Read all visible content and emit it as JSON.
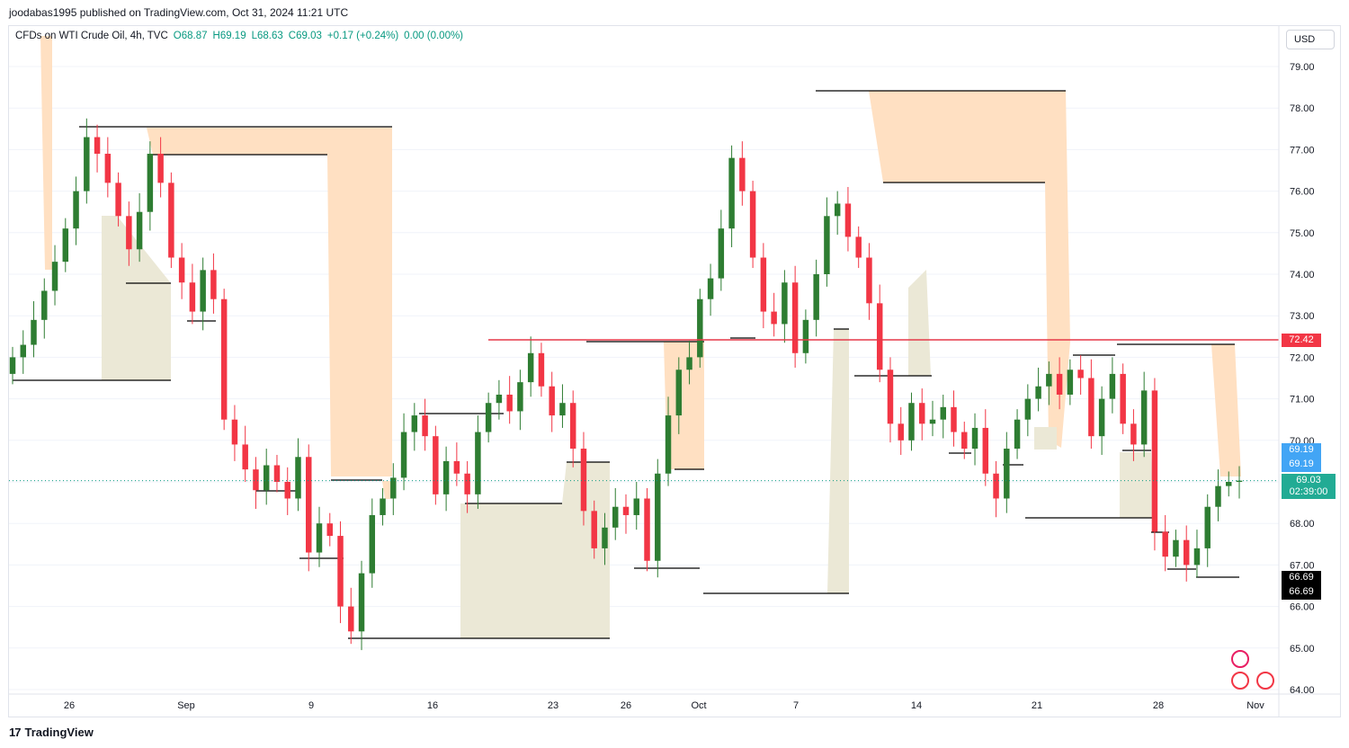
{
  "header": {
    "published_line": "joodabas1995 published on TradingView.com, Oct 31, 2024 11:21 UTC"
  },
  "legend": {
    "symbol": "CFDs on WTI Crude Oil, 4h, TVC",
    "open": "O68.87",
    "high": "H69.19",
    "low": "L68.63",
    "close": "C69.03",
    "change": "+0.17 (+0.24%)",
    "volume": "0.00 (0.00%)"
  },
  "currency": "USD",
  "footer": {
    "brand": "TradingView",
    "mark": "17"
  },
  "badges": {
    "resistance": "72.42",
    "high_1": "69.19",
    "high_2": "69.19",
    "last_price": "69.03",
    "countdown": "02:39:00",
    "low_1": "66.69",
    "low_2": "66.69"
  },
  "colors": {
    "up": "#089981",
    "up_candle": "#2e7d32",
    "down": "#f23645",
    "resistance_line": "#e53948",
    "supply_zone": "#ffe0c2",
    "demand_zone": "#ebe8d6",
    "blue_badge": "#42a5f5",
    "green_badge": "#22ab94",
    "black_badge": "#000000"
  },
  "chart_data": {
    "type": "candlestick",
    "ylim": [
      64.0,
      79.5
    ],
    "y_ticks": [
      "79.00",
      "78.00",
      "77.00",
      "76.00",
      "75.00",
      "74.00",
      "73.00",
      "72.00",
      "71.00",
      "70.00",
      "69.00",
      "68.00",
      "67.00",
      "66.00",
      "65.00",
      "64.00"
    ],
    "x_ticks": [
      "26",
      "Sep",
      "9",
      "16",
      "23",
      "26",
      "Oct",
      "7",
      "14",
      "21",
      "28",
      "Nov"
    ],
    "resistance_level": 72.42,
    "last_price": 69.03,
    "closes": [
      72.0,
      72.3,
      72.9,
      73.6,
      74.3,
      75.1,
      76.0,
      77.3,
      76.9,
      76.2,
      75.4,
      74.6,
      75.5,
      76.9,
      76.2,
      74.4,
      73.8,
      73.1,
      74.1,
      73.4,
      70.5,
      69.9,
      69.3,
      68.8,
      69.4,
      69.0,
      68.6,
      69.6,
      67.3,
      68.0,
      67.7,
      66.0,
      65.4,
      66.8,
      68.2,
      68.6,
      69.1,
      70.2,
      70.6,
      70.1,
      68.7,
      69.5,
      69.2,
      68.7,
      70.2,
      70.9,
      71.1,
      70.7,
      71.4,
      72.1,
      71.3,
      70.6,
      70.9,
      69.8,
      68.3,
      67.4,
      67.9,
      68.4,
      68.2,
      68.6,
      67.1,
      69.2,
      70.6,
      71.7,
      72.0,
      73.4,
      73.9,
      75.1,
      76.8,
      76.0,
      74.4,
      73.1,
      72.8,
      73.8,
      72.1,
      72.9,
      74.0,
      75.4,
      75.7,
      74.9,
      74.4,
      73.3,
      71.7,
      70.4,
      70.0,
      70.9,
      70.4,
      70.5,
      70.8,
      70.2,
      69.8,
      70.3,
      69.2,
      68.6,
      69.8,
      70.5,
      71.0,
      71.3,
      71.6,
      71.1,
      71.7,
      71.5,
      70.1,
      71.0,
      71.6,
      70.4,
      69.9,
      71.2,
      67.8,
      67.2,
      67.6,
      67.0,
      67.4,
      68.4,
      68.9,
      69.0,
      69.03
    ],
    "supply_zones_count": 6,
    "demand_zones_count": 6
  }
}
